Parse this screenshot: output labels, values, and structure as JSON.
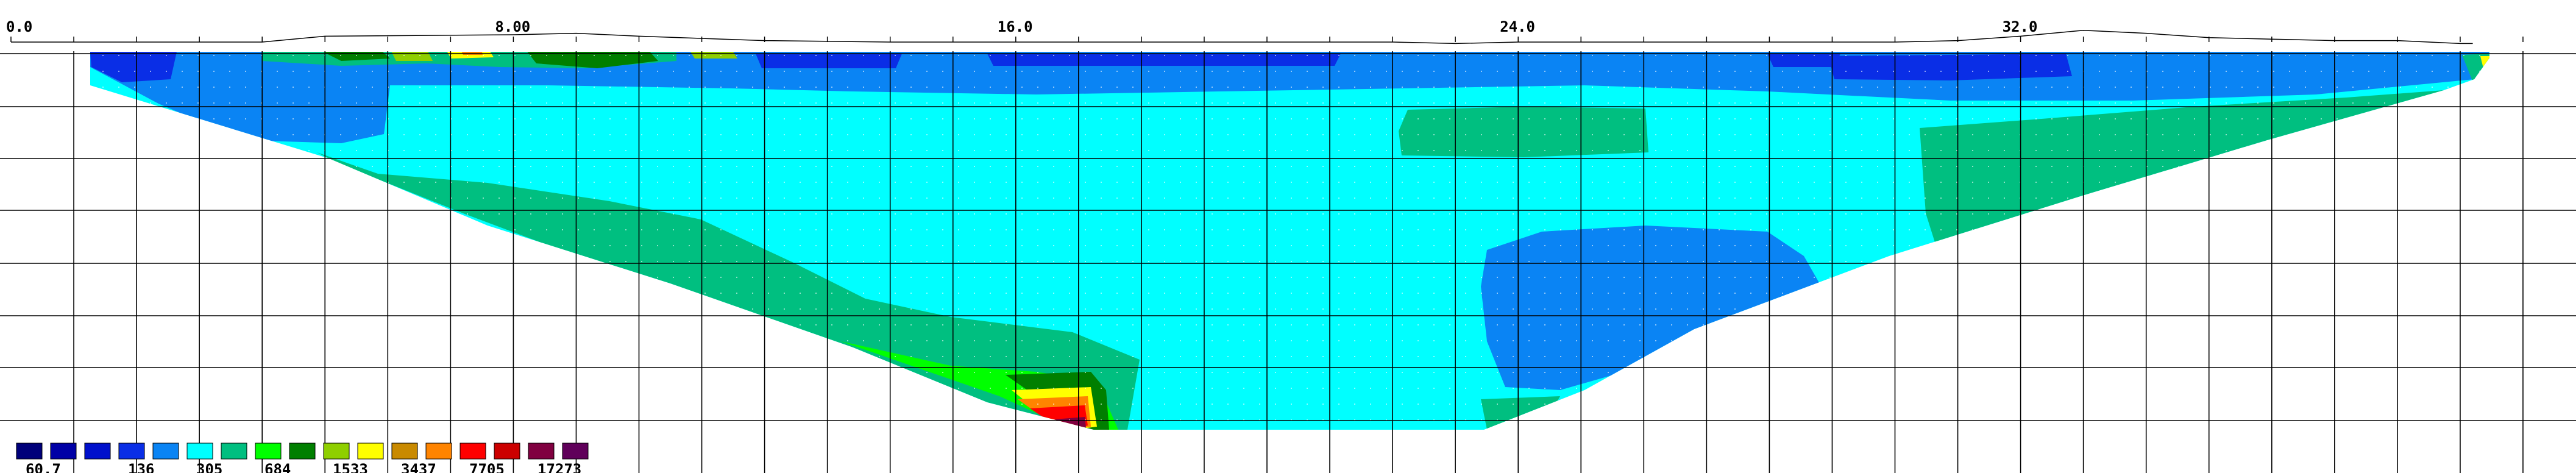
{
  "chart_data": {
    "type": "heatmap",
    "x_ticks": [
      "0.0",
      "8.00",
      "16.0",
      "24.0",
      "32.0"
    ],
    "x_tick_values": [
      0,
      8,
      16,
      24,
      32
    ],
    "xlim": [
      0,
      40
    ],
    "grid": true,
    "legend": {
      "placement": "bottom-left",
      "colors": [
        "#00007a",
        "#0000a6",
        "#0010cc",
        "#0a2ee6",
        "#0a84f4",
        "#00ffff",
        "#00bf80",
        "#00ff00",
        "#007f00",
        "#8fcf00",
        "#ffff00",
        "#c98a00",
        "#ff8400",
        "#ff0000",
        "#cc0000",
        "#800040",
        "#60005a"
      ],
      "labels": [
        "60.7",
        "136",
        "305",
        "684",
        "1533",
        "3437",
        "7705",
        "17273"
      ],
      "label_slots": [
        0,
        3,
        5,
        7,
        9,
        11,
        13,
        15
      ]
    },
    "topography": {
      "x": [
        0,
        4,
        5,
        8,
        9,
        10,
        12,
        14,
        16,
        18,
        20,
        22,
        23,
        24,
        26,
        28,
        30,
        31,
        32,
        33,
        34,
        35,
        36,
        37,
        38,
        39,
        39.2
      ],
      "y": [
        0,
        0,
        0.4,
        0.5,
        0.6,
        0.4,
        0.1,
        0,
        0,
        0,
        0,
        0,
        -0.1,
        0,
        0,
        0,
        0,
        0.1,
        0.4,
        0.8,
        0.6,
        0.3,
        0.2,
        0.1,
        0.1,
        -0.1,
        -0.1
      ]
    }
  }
}
